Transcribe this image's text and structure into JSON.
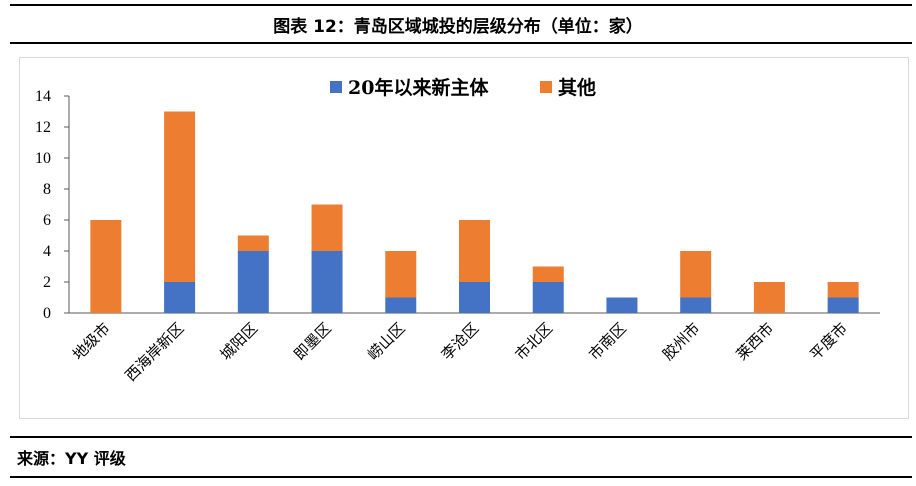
{
  "title": "图表 12：青岛区域城投的层级分布（单位：家）",
  "source": "来源：YY 评级",
  "chart_data": {
    "type": "bar",
    "stacked": true,
    "categories": [
      "地级市",
      "西海岸新区",
      "城阳区",
      "即墨区",
      "崂山区",
      "李沧区",
      "市北区",
      "市南区",
      "胶州市",
      "莱西市",
      "平度市"
    ],
    "series": [
      {
        "name": "20年以来新主体",
        "color": "#4472C4",
        "values": [
          0,
          2,
          4,
          4,
          1,
          2,
          2,
          1,
          1,
          0,
          1
        ]
      },
      {
        "name": "其他",
        "color": "#ED7D31",
        "values": [
          6,
          11,
          1,
          3,
          3,
          4,
          1,
          0,
          3,
          2,
          1
        ]
      }
    ],
    "yticks": [
      "0",
      "2",
      "4",
      "6",
      "8",
      "10",
      "12",
      "14"
    ],
    "ylim": [
      0,
      14
    ],
    "legend_position": "top-center",
    "grid": false
  }
}
